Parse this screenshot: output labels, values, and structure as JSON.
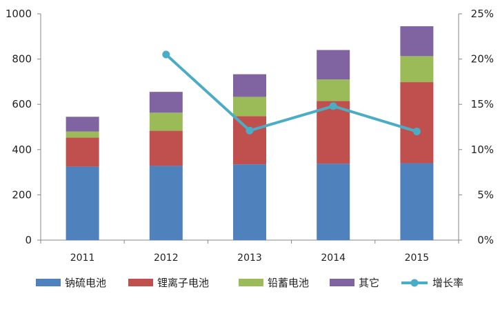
{
  "chart_data": {
    "type": "bar",
    "stacked": true,
    "categories": [
      "2011",
      "2012",
      "2013",
      "2014",
      "2015"
    ],
    "series": [
      {
        "name": "钠硫电池",
        "type": "bar",
        "axis": "left",
        "color": "#4F81BD",
        "values": [
          325,
          328,
          335,
          338,
          340
        ]
      },
      {
        "name": "锂离子电池",
        "type": "bar",
        "axis": "left",
        "color": "#C0504D",
        "values": [
          128,
          155,
          213,
          277,
          358
        ]
      },
      {
        "name": "铅蓄电池",
        "type": "bar",
        "axis": "left",
        "color": "#9BBB59",
        "values": [
          27,
          80,
          85,
          95,
          115
        ]
      },
      {
        "name": "其它",
        "type": "bar",
        "axis": "left",
        "color": "#8064A2",
        "values": [
          65,
          92,
          100,
          130,
          132
        ]
      },
      {
        "name": "增长率",
        "type": "line",
        "axis": "right",
        "color": "#4BACC6",
        "values": [
          null,
          0.205,
          0.121,
          0.148,
          0.12
        ]
      }
    ],
    "ylim": [
      0,
      1000
    ],
    "yticks": [
      "0",
      "200",
      "400",
      "600",
      "800",
      "1000"
    ],
    "y2lim": [
      0,
      0.25
    ],
    "y2ticks": [
      "0%",
      "5%",
      "10%",
      "15%",
      "20%",
      "25%"
    ],
    "legend_position": "bottom",
    "grid": false
  }
}
